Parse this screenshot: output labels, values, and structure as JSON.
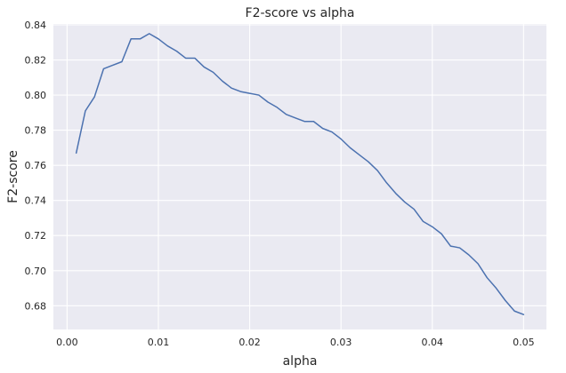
{
  "chart_data": {
    "type": "line",
    "title": "F2-score vs alpha",
    "xlabel": "alpha",
    "ylabel": "F2-score",
    "xlim": [
      -0.0015,
      0.0525
    ],
    "ylim": [
      0.6665,
      0.8405
    ],
    "grid": true,
    "x_ticks": [
      0.0,
      0.01,
      0.02,
      0.03,
      0.04,
      0.05
    ],
    "x_tick_labels": [
      "0.00",
      "0.01",
      "0.02",
      "0.03",
      "0.04",
      "0.05"
    ],
    "y_ticks": [
      0.68,
      0.7,
      0.72,
      0.74,
      0.76,
      0.78,
      0.8,
      0.82,
      0.84
    ],
    "y_tick_labels": [
      "0.68",
      "0.70",
      "0.72",
      "0.74",
      "0.76",
      "0.78",
      "0.80",
      "0.82",
      "0.84"
    ],
    "colors": {
      "background": "#eaeaf2",
      "grid": "#ffffff",
      "line": "#4c72b0",
      "text": "#262626"
    },
    "series": [
      {
        "x": [
          0.001,
          0.002,
          0.003,
          0.004,
          0.005,
          0.006,
          0.007,
          0.008,
          0.009,
          0.01,
          0.011,
          0.012,
          0.013,
          0.014,
          0.015,
          0.016,
          0.017,
          0.018,
          0.019,
          0.02,
          0.021,
          0.022,
          0.023,
          0.024,
          0.025,
          0.026,
          0.027,
          0.028,
          0.029,
          0.03,
          0.031,
          0.032,
          0.033,
          0.034,
          0.035,
          0.036,
          0.037,
          0.038,
          0.039,
          0.04,
          0.041,
          0.042,
          0.043,
          0.044,
          0.045,
          0.046,
          0.047,
          0.048,
          0.049,
          0.05
        ],
        "values": [
          0.767,
          0.791,
          0.799,
          0.815,
          0.817,
          0.819,
          0.832,
          0.832,
          0.835,
          0.832,
          0.828,
          0.825,
          0.821,
          0.821,
          0.816,
          0.813,
          0.808,
          0.804,
          0.802,
          0.801,
          0.8,
          0.796,
          0.793,
          0.789,
          0.787,
          0.785,
          0.785,
          0.781,
          0.779,
          0.775,
          0.77,
          0.766,
          0.762,
          0.757,
          0.75,
          0.744,
          0.739,
          0.735,
          0.728,
          0.725,
          0.721,
          0.714,
          0.713,
          0.709,
          0.704,
          0.696,
          0.69,
          0.683,
          0.677,
          0.675
        ]
      }
    ]
  }
}
